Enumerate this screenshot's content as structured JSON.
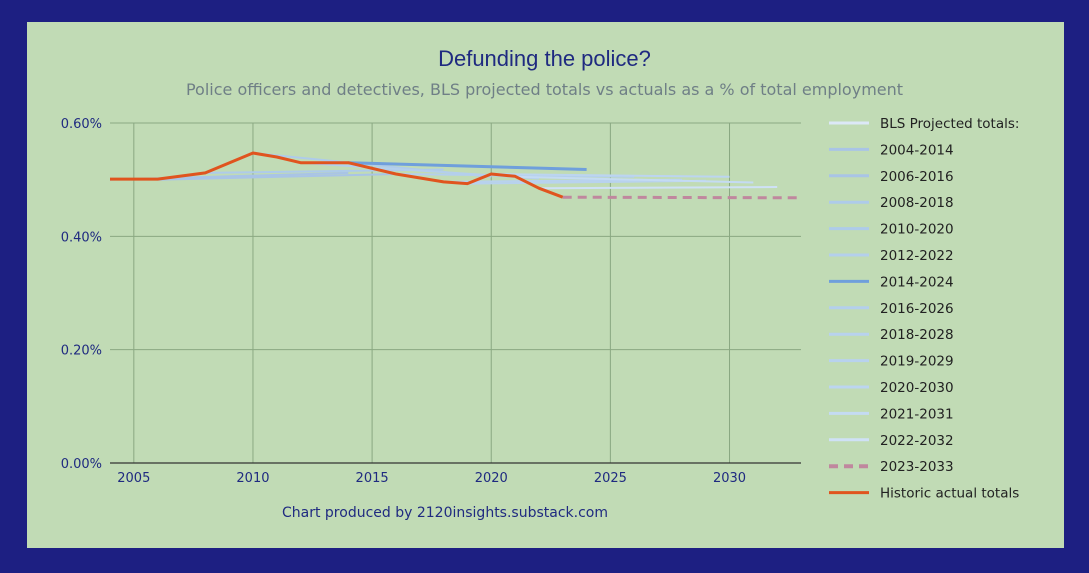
{
  "chart_data": {
    "type": "line",
    "title": "Defunding the police?",
    "subtitle": "Police officers and detectives, BLS projected totals vs actuals as a % of total employment",
    "credit": "Chart produced by 2120insights.substack.com",
    "xlim": [
      2004,
      2033
    ],
    "ylim": [
      0,
      0.6
    ],
    "x_ticks": [
      2005,
      2010,
      2015,
      2020,
      2025,
      2030
    ],
    "x_tick_labels": [
      "2005",
      "2010",
      "2015",
      "2020",
      "2025",
      "2030"
    ],
    "y_ticks": [
      0,
      0.2,
      0.4,
      0.6
    ],
    "y_tick_labels": [
      "0.00%",
      "0.20%",
      "0.40%",
      "0.60%"
    ],
    "legend_header": "BLS Projected totals:",
    "series": [
      {
        "name": "2004-2014",
        "x": [
          2004,
          2014
        ],
        "y": [
          0.5,
          0.512
        ],
        "color": "#a9c4e6",
        "width": 2,
        "dash": false
      },
      {
        "name": "2006-2016",
        "x": [
          2006,
          2016
        ],
        "y": [
          0.5,
          0.51
        ],
        "color": "#a9c4e6",
        "width": 2,
        "dash": false
      },
      {
        "name": "2008-2018",
        "x": [
          2008,
          2018
        ],
        "y": [
          0.512,
          0.518
        ],
        "color": "#aecbea",
        "width": 2,
        "dash": false
      },
      {
        "name": "2010-2020",
        "x": [
          2010,
          2020
        ],
        "y": [
          0.547,
          0.505
        ],
        "color": "#aecbea",
        "width": 2,
        "dash": false
      },
      {
        "name": "2012-2022",
        "x": [
          2012,
          2022
        ],
        "y": [
          0.53,
          0.502
        ],
        "color": "#b4cfec",
        "width": 2,
        "dash": false
      },
      {
        "name": "2014-2024",
        "x": [
          2014,
          2024
        ],
        "y": [
          0.53,
          0.518
        ],
        "color": "#6f9fdc",
        "width": 3,
        "dash": false
      },
      {
        "name": "2016-2026",
        "x": [
          2016,
          2026
        ],
        "y": [
          0.51,
          0.505
        ],
        "color": "#b4cfec",
        "width": 2,
        "dash": false
      },
      {
        "name": "2018-2028",
        "x": [
          2018,
          2028
        ],
        "y": [
          0.496,
          0.5
        ],
        "color": "#b8d2ee",
        "width": 2,
        "dash": false
      },
      {
        "name": "2019-2029",
        "x": [
          2019,
          2029
        ],
        "y": [
          0.493,
          0.498
        ],
        "color": "#b8d2ee",
        "width": 2,
        "dash": false
      },
      {
        "name": "2020-2030",
        "x": [
          2020,
          2030
        ],
        "y": [
          0.51,
          0.505
        ],
        "color": "#bcd5f0",
        "width": 2,
        "dash": false
      },
      {
        "name": "2021-2031",
        "x": [
          2021,
          2031
        ],
        "y": [
          0.505,
          0.495
        ],
        "color": "#c4dbf3",
        "width": 2,
        "dash": false
      },
      {
        "name": "2022-2032",
        "x": [
          2022,
          2032
        ],
        "y": [
          0.485,
          0.487
        ],
        "color": "#cfe1f6",
        "width": 2,
        "dash": false
      },
      {
        "name": "2023-2033",
        "x": [
          2023,
          2033
        ],
        "y": [
          0.469,
          0.468
        ],
        "color": "#c0879e",
        "width": 3,
        "dash": true
      },
      {
        "name": "Historic actual totals",
        "x": [
          2004,
          2006,
          2008,
          2010,
          2011,
          2012,
          2014,
          2016,
          2018,
          2019,
          2020,
          2021,
          2022,
          2023
        ],
        "y": [
          0.501,
          0.501,
          0.512,
          0.547,
          0.54,
          0.53,
          0.53,
          0.51,
          0.496,
          0.493,
          0.51,
          0.506,
          0.485,
          0.469
        ],
        "color": "#e0541e",
        "width": 3,
        "dash": false
      }
    ]
  }
}
